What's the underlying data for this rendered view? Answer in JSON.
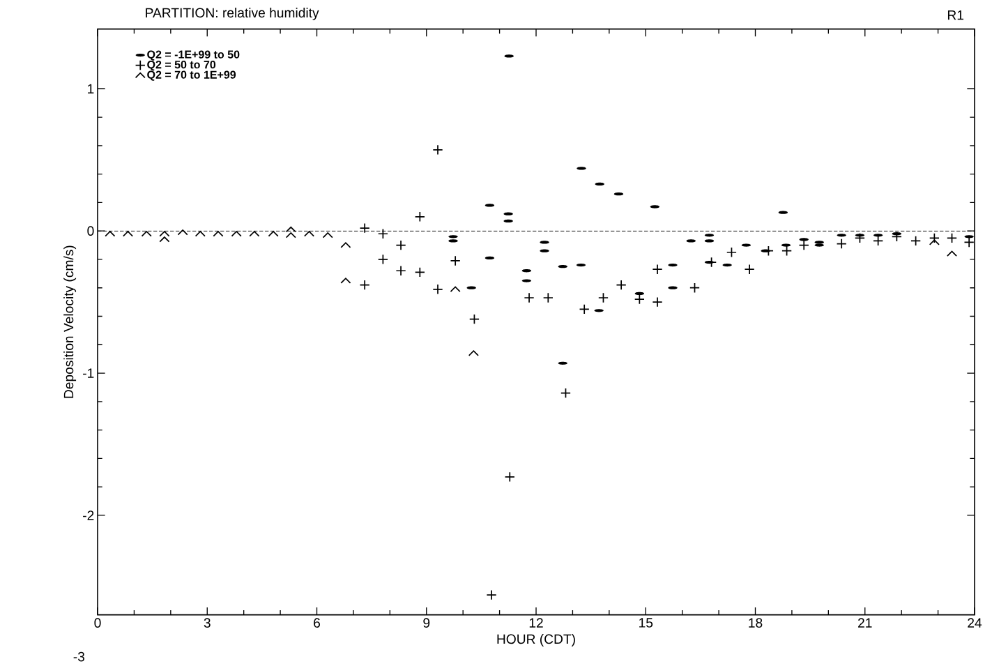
{
  "chart_data": {
    "type": "scatter",
    "title": "PARTITION: relative humidity",
    "xlabel": "HOUR (CDT)",
    "ylabel": "Deposition Velocity  (cm/s)",
    "annotations": [
      "R1",
      "-3"
    ],
    "xlim": [
      0,
      24
    ],
    "ylim": [
      -2.7,
      1.42
    ],
    "xticks": [
      0,
      3,
      6,
      9,
      12,
      15,
      18,
      21,
      24
    ],
    "yticks": [
      -2,
      -1,
      0,
      1
    ],
    "legend": "top left",
    "ref_lines": [
      {
        "axis": "y",
        "value": 0,
        "line_style": "dashed",
        "color": "#000000"
      }
    ],
    "series": [
      {
        "name": "Q2 = -1E+99 to 50",
        "color": "#000000",
        "x": [
          9.73,
          9.73,
          10.23,
          10.73,
          10.73,
          11.24,
          11.24,
          11.26,
          11.74,
          11.74,
          12.23,
          12.23,
          12.73,
          12.73,
          13.24,
          13.23,
          13.74,
          13.72,
          14.26,
          14.83,
          15.25,
          15.74,
          15.74,
          16.24,
          16.74,
          16.74,
          16.74,
          17.23,
          17.75,
          18.28,
          18.76,
          18.84,
          19.33,
          19.75,
          19.75,
          20.36,
          20.86,
          21.36,
          21.87,
          23.85
        ],
        "values": [
          -0.04,
          -0.07,
          -0.4,
          0.18,
          -0.19,
          0.12,
          0.07,
          1.23,
          -0.28,
          -0.35,
          -0.08,
          -0.14,
          -0.25,
          -0.93,
          0.44,
          -0.24,
          0.33,
          -0.56,
          0.26,
          -0.44,
          0.17,
          -0.24,
          -0.4,
          -0.07,
          -0.03,
          -0.07,
          -0.22,
          -0.24,
          -0.1,
          -0.14,
          0.13,
          -0.1,
          -0.06,
          -0.08,
          -0.1,
          -0.03,
          -0.03,
          -0.03,
          -0.02,
          -0.04
        ]
      },
      {
        "name": "Q2 = 50 to 70",
        "color": "#000000",
        "x": [
          7.31,
          7.31,
          7.81,
          7.81,
          8.3,
          8.3,
          8.82,
          8.82,
          9.31,
          9.31,
          9.79,
          10.31,
          10.78,
          11.28,
          11.81,
          12.33,
          12.81,
          13.32,
          13.84,
          14.33,
          14.83,
          15.32,
          15.32,
          16.34,
          16.8,
          17.35,
          17.84,
          18.36,
          18.86,
          19.33,
          20.36,
          20.86,
          21.36,
          21.87,
          22.39,
          22.9,
          23.38,
          23.85
        ],
        "values": [
          0.02,
          -0.38,
          -0.02,
          -0.2,
          -0.1,
          -0.28,
          0.1,
          -0.29,
          0.57,
          -0.41,
          -0.21,
          -0.62,
          -2.56,
          -1.73,
          -0.47,
          -0.47,
          -1.14,
          -0.55,
          -0.47,
          -0.38,
          -0.48,
          -0.27,
          -0.5,
          -0.4,
          -0.22,
          -0.15,
          -0.27,
          -0.14,
          -0.14,
          -0.1,
          -0.09,
          -0.05,
          -0.07,
          -0.04,
          -0.07,
          -0.05,
          -0.05,
          -0.08
        ]
      },
      {
        "name": "Q2 = 70 to 1E+99",
        "color": "#000000",
        "x": [
          0.34,
          0.83,
          1.34,
          1.83,
          1.83,
          2.33,
          2.81,
          3.3,
          3.8,
          4.29,
          4.81,
          5.29,
          5.29,
          5.79,
          6.3,
          6.79,
          6.79,
          9.79,
          10.29,
          22.9,
          23.38
        ],
        "values": [
          -0.02,
          -0.02,
          -0.02,
          -0.02,
          -0.06,
          -0.01,
          -0.02,
          -0.02,
          -0.02,
          -0.02,
          -0.02,
          0.01,
          -0.03,
          -0.02,
          -0.03,
          -0.1,
          -0.35,
          -0.41,
          -0.86,
          -0.08,
          -0.16
        ]
      }
    ]
  }
}
